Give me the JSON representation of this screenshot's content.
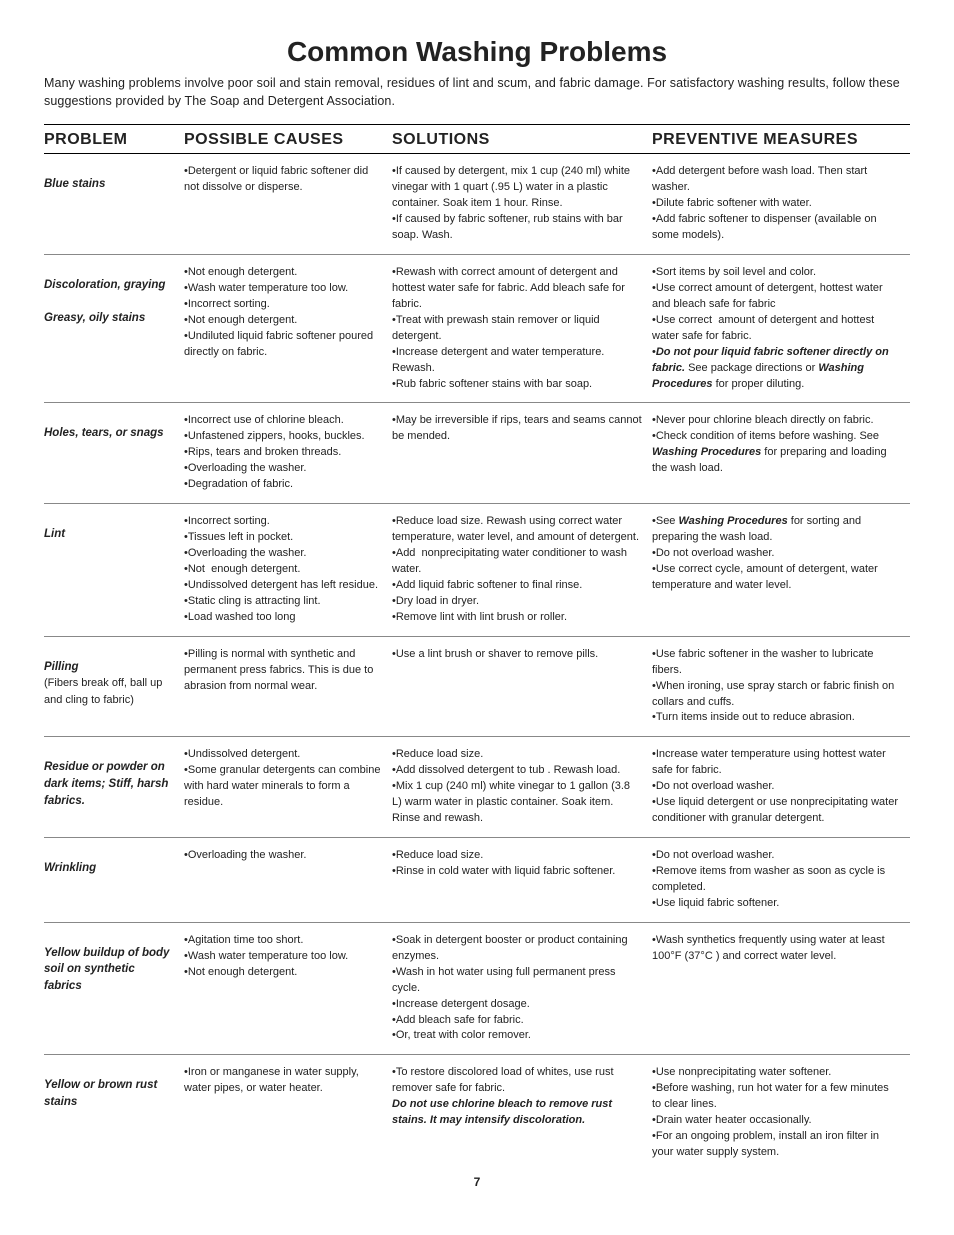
{
  "title": "Common Washing Problems",
  "intro": "Many washing problems involve poor soil and stain removal, residues of lint and scum, and fabric damage. For satisfactory washing results, follow these suggestions provided by The Soap and Detergent Association.",
  "headers": [
    "PROBLEM",
    "POSSIBLE CAUSES",
    "SOLUTIONS",
    "PREVENTIVE MEASURES"
  ],
  "page_number": "7",
  "rows": [
    {
      "problem_html": "<span class='bi'>Blue stains</span>",
      "causes": "•Detergent or liquid fabric softener did not dissolve or disperse.",
      "solutions": "•If caused by detergent, mix 1 cup (240 ml) white vinegar with 1 quart (.95 L) water in a plastic container. Soak item 1 hour. Rinse.\n•If caused by fabric softener, rub stains with bar soap. Wash.",
      "preventive": "•Add detergent before wash load. Then start washer.\n•Dilute fabric softener with water.\n•Add fabric softener to dispenser (available on some models)."
    },
    {
      "problem_html": "<span class='bi'>Discoloration, graying</span><br><br><span class='bi'>Greasy, oily stains</span>",
      "causes": "•Not enough detergent.\n•Wash water temperature too low.\n•Incorrect sorting.\n•Not enough detergent.\n•Undiluted liquid fabric softener poured directly on fabric.",
      "solutions": "•Rewash with correct amount of detergent and hottest water safe for fabric. Add bleach safe for fabric.\n•Treat with prewash stain remover or liquid detergent.\n•Increase detergent and water temperature. Rewash.\n•Rub fabric softener stains with bar soap.",
      "preventive_html": "•Sort items by soil level and color.\n•Use correct amount of detergent, hottest water and bleach safe for fabric\n•Use correct  amount of detergent and hottest water safe for fabric.\n•<b><i>Do not pour liquid fabric softener directly on fabric.</i></b> See package directions or <b><i>Washing Procedures</i></b> for proper diluting."
    },
    {
      "problem_html": "<span class='bi'>Holes, tears, or snags</span>",
      "causes": "•Incorrect use of chlorine bleach.\n•Unfastened zippers, hooks, buckles.\n•Rips, tears and broken threads.\n•Overloading the washer.\n•Degradation of fabric.",
      "solutions": "•May be irreversible if rips, tears and seams cannot be mended.",
      "preventive_html": "•Never pour chlorine bleach directly on fabric.\n•Check condition of items before washing. See <b><i>Washing Procedures</i></b> for preparing and loading the wash load."
    },
    {
      "problem_html": "<span class='bi'>Lint</span>",
      "causes": "•Incorrect sorting.\n•Tissues left in pocket.\n•Overloading the washer.\n•Not  enough detergent.\n•Undissolved detergent has left residue.\n•Static cling is attracting lint.\n•Load washed too long",
      "solutions": "•Reduce load size. Rewash using correct water temperature, water level, and amount of detergent.\n•Add  nonprecipitating water conditioner to wash water.\n•Add liquid fabric softener to final rinse.\n•Dry load in dryer.\n•Remove lint with lint brush or roller.",
      "preventive_html": "•See <b><i>Washing Procedures</i></b> for sorting and preparing the wash load.\n•Do not overload washer.\n•Use correct cycle, amount of detergent, water temperature and water level."
    },
    {
      "problem_html": "<span class='bi'>Pilling</span><br><span class='sub'>(Fibers break off, ball up and cling to fabric)</span>",
      "causes": "•Pilling is normal with synthetic and permanent press fabrics. This is due to abrasion from normal wear.",
      "solutions": "•Use a lint brush or shaver to remove pills.",
      "preventive": "•Use fabric softener in the washer to lubricate fibers.\n•When ironing, use spray starch or fabric finish on collars and cuffs.\n•Turn items inside out to reduce abrasion."
    },
    {
      "problem_html": "<span class='bi'>Residue or powder on dark items; Stiff, harsh fabrics.</span>",
      "causes": "•Undissolved detergent.\n•Some granular detergents can combine with hard water minerals to form a residue.",
      "solutions": "•Reduce load size.\n•Add dissolved detergent to tub . Rewash load.\n•Mix 1 cup (240 ml) white vinegar to 1 gallon (3.8 L) warm water in plastic container. Soak item. Rinse and rewash.",
      "preventive": "•Increase water temperature using hottest water safe for fabric.\n•Do not overload washer.\n•Use liquid detergent or use nonprecipitating water conditioner with granular detergent."
    },
    {
      "problem_html": "<span class='bi'>Wrinkling</span>",
      "causes": "•Overloading the washer.",
      "solutions": "•Reduce load size.\n•Rinse in cold water with liquid fabric softener.",
      "preventive": "•Do not overload washer.\n•Remove items from washer as soon as cycle is completed.\n•Use liquid fabric softener."
    },
    {
      "problem_html": "<span class='bi'>Yellow buildup of body soil on synthetic fabrics</span>",
      "causes": "•Agitation time too short.\n•Wash water temperature too low.\n•Not enough detergent.",
      "solutions": "•Soak in detergent booster or product containing enzymes.\n•Wash in hot water using full permanent press cycle.\n•Increase detergent dosage.\n•Add bleach safe for fabric.\n•Or, treat with color remover.",
      "preventive": "•Wash synthetics frequently using water at least 100°F (37°C ) and correct water level."
    },
    {
      "problem_html": "<span class='bi'>Yellow or brown rust stains</span>",
      "causes": "•Iron or manganese in water supply, water pipes, or water heater.",
      "solutions_html": "•To restore discolored load of whites, use rust remover safe for fabric.\n<b><i>Do not use chlorine bleach to remove rust stains. It may intensify discoloration.</i></b>",
      "preventive": "•Use nonprecipitating water softener.\n•Before washing, run hot water for a few minutes to clear lines.\n•Drain water heater occasionally.\n•For an ongoing problem, install an iron filter in your water supply system."
    }
  ]
}
